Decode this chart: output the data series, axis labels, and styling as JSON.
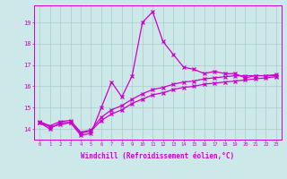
{
  "xlabel": "Windchill (Refroidissement éolien,°C)",
  "background_color": "#cce8e8",
  "line_color": "#cc00cc",
  "grid_color": "#aacccc",
  "x_values": [
    0,
    1,
    2,
    3,
    4,
    5,
    6,
    7,
    8,
    9,
    10,
    11,
    12,
    13,
    14,
    15,
    16,
    17,
    18,
    19,
    20,
    21,
    22,
    23
  ],
  "temp_line": [
    14.3,
    14.0,
    14.3,
    14.3,
    13.7,
    13.8,
    15.0,
    16.2,
    15.5,
    16.5,
    19.0,
    19.5,
    18.1,
    17.5,
    16.9,
    16.8,
    16.6,
    16.7,
    16.6,
    16.6,
    16.4,
    16.5,
    16.5,
    16.5
  ],
  "lower_line": [
    14.3,
    14.1,
    14.2,
    14.3,
    13.8,
    13.9,
    14.4,
    14.7,
    14.9,
    15.2,
    15.4,
    15.6,
    15.7,
    15.85,
    15.95,
    16.0,
    16.1,
    16.15,
    16.2,
    16.25,
    16.3,
    16.35,
    16.4,
    16.45
  ],
  "upper_line": [
    14.35,
    14.15,
    14.35,
    14.4,
    13.85,
    13.95,
    14.55,
    14.9,
    15.1,
    15.4,
    15.65,
    15.85,
    15.95,
    16.1,
    16.2,
    16.25,
    16.35,
    16.4,
    16.45,
    16.5,
    16.5,
    16.5,
    16.5,
    16.55
  ],
  "ylim": [
    13.5,
    19.8
  ],
  "yticks": [
    14,
    15,
    16,
    17,
    18,
    19
  ],
  "xlim": [
    -0.5,
    23.5
  ],
  "xtick_labels": [
    "0",
    "1",
    "2",
    "3",
    "4",
    "5",
    "6",
    "7",
    "8",
    "9",
    "10",
    "11",
    "12",
    "13",
    "14",
    "15",
    "16",
    "17",
    "18",
    "19",
    "20",
    "21",
    "22",
    "23"
  ]
}
